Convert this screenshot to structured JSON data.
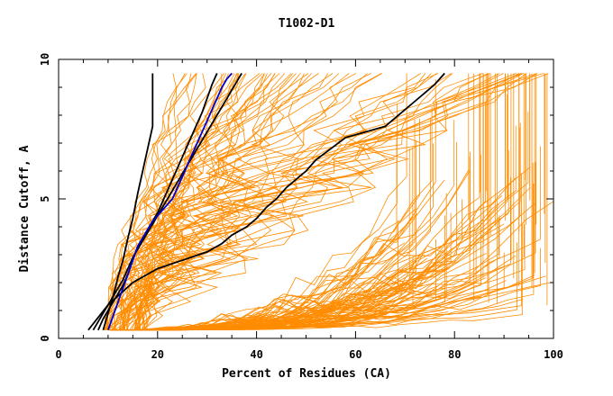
{
  "chart_data": {
    "type": "line",
    "title": "T1002-D1",
    "xlabel": "Percent of Residues (CA)",
    "ylabel": "Distance Cutoff, A",
    "xlim": [
      0,
      100
    ],
    "ylim": [
      0,
      10
    ],
    "x_ticks": [
      "0",
      "20",
      "40",
      "60",
      "80",
      "100"
    ],
    "y_ticks": [
      "0",
      "5",
      "10"
    ],
    "grid": false,
    "colors": {
      "background_models": "#ff8c00",
      "highlight_black": "#000000",
      "highlight_blue": "#0000cc"
    },
    "series": [
      {
        "color": "black",
        "x": [
          9,
          10,
          11,
          12,
          13,
          14,
          15,
          16,
          17,
          18,
          19,
          19
        ],
        "y": [
          0.3,
          0.9,
          1.5,
          2.2,
          2.8,
          3.6,
          4.3,
          5.2,
          6.0,
          6.8,
          7.6,
          9.5
        ]
      },
      {
        "color": "black",
        "x": [
          8,
          9,
          10,
          11,
          12,
          13,
          14,
          15,
          16,
          17,
          18,
          19,
          20,
          21,
          22,
          23,
          24,
          25,
          26,
          27,
          28,
          29,
          30,
          31,
          32
        ],
        "y": [
          0.3,
          0.7,
          1.0,
          1.3,
          1.6,
          1.9,
          2.3,
          2.8,
          3.3,
          3.6,
          3.9,
          4.2,
          4.5,
          4.9,
          5.3,
          5.7,
          6.1,
          6.5,
          6.9,
          7.3,
          7.7,
          8.1,
          8.6,
          9.1,
          9.5
        ]
      },
      {
        "color": "black",
        "x": [
          7,
          8,
          9,
          10,
          11,
          12,
          13,
          14,
          15,
          16,
          17,
          18,
          19,
          20,
          21,
          22,
          23,
          24,
          25,
          26,
          27,
          28,
          29,
          30,
          31,
          32,
          33,
          34,
          35,
          36,
          37
        ],
        "y": [
          0.3,
          0.6,
          0.9,
          1.2,
          1.5,
          1.8,
          2.1,
          2.5,
          2.9,
          3.2,
          3.5,
          3.8,
          4.1,
          4.4,
          4.7,
          5.0,
          5.3,
          5.6,
          5.9,
          6.2,
          6.5,
          6.8,
          7.1,
          7.4,
          7.7,
          8.0,
          8.3,
          8.6,
          8.9,
          9.2,
          9.5
        ]
      },
      {
        "color": "black",
        "x": [
          6,
          10,
          15,
          20,
          25,
          30,
          33,
          35,
          38,
          40,
          42,
          44,
          46,
          48,
          50,
          52,
          55,
          58,
          62,
          66,
          68,
          70,
          72,
          74,
          76,
          78
        ],
        "y": [
          0.3,
          1.2,
          2.0,
          2.5,
          2.8,
          3.1,
          3.4,
          3.7,
          4.0,
          4.3,
          4.7,
          5.0,
          5.4,
          5.7,
          6.0,
          6.4,
          6.8,
          7.2,
          7.4,
          7.6,
          7.9,
          8.2,
          8.5,
          8.8,
          9.1,
          9.5
        ]
      },
      {
        "color": "blue",
        "x": [
          10,
          11,
          12,
          13,
          14,
          15,
          16,
          17,
          18,
          19,
          20,
          21,
          22,
          23,
          24,
          25,
          26,
          27,
          28,
          29,
          30,
          31,
          32,
          33,
          34,
          35
        ],
        "y": [
          0.3,
          0.8,
          1.3,
          1.8,
          2.3,
          2.8,
          3.3,
          3.6,
          3.9,
          4.2,
          4.4,
          4.6,
          4.8,
          5.0,
          5.4,
          5.8,
          6.2,
          6.6,
          7.0,
          7.4,
          7.8,
          8.2,
          8.6,
          9.0,
          9.3,
          9.5
        ]
      }
    ]
  }
}
